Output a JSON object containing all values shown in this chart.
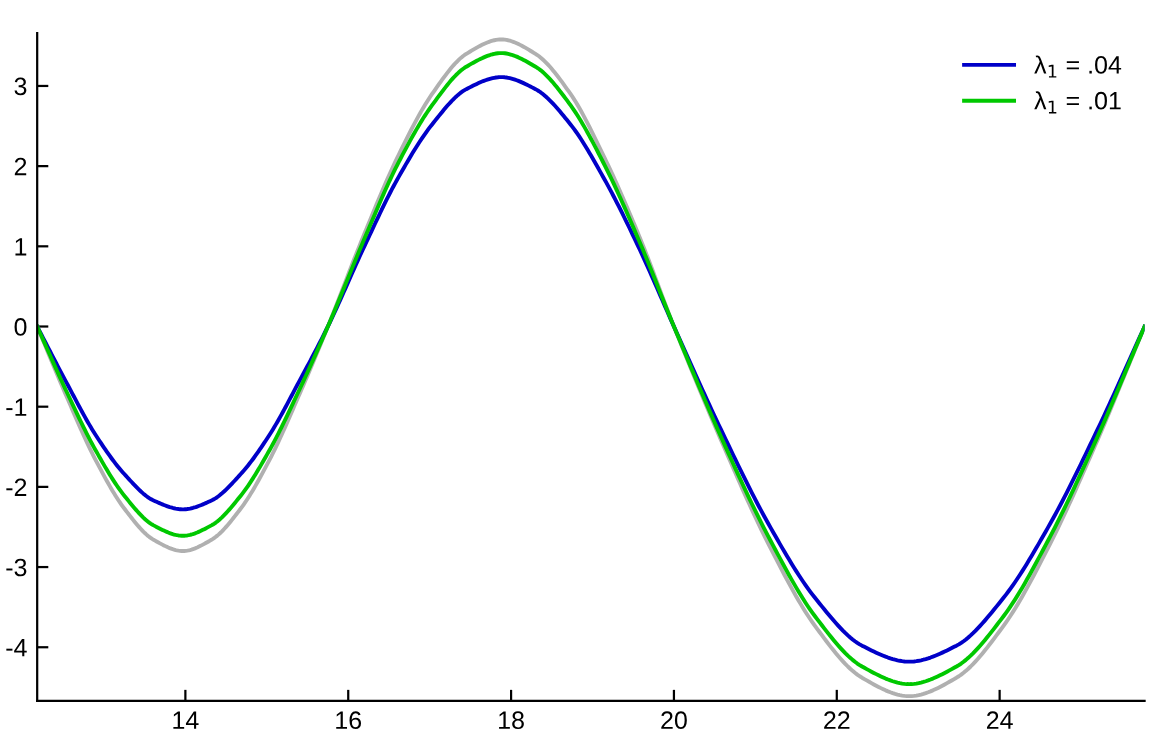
{
  "chart_data": {
    "type": "line",
    "x": [
      12.18,
      12.54,
      12.89,
      13.25,
      13.61,
      13.97,
      14.32,
      14.68,
      15.04,
      15.39,
      15.75,
      16.18,
      16.6,
      17.03,
      17.45,
      17.88,
      18.3,
      18.73,
      19.15,
      19.58,
      20,
      20.58,
      21.16,
      21.73,
      22.31,
      22.89,
      23.47,
      24.05,
      24.62,
      25.2,
      25.78
    ],
    "series": [
      {
        "color": "#b0b0b0",
        "values": [
          0,
          -0.87,
          -1.65,
          -2.27,
          -2.66,
          -2.8,
          -2.66,
          -2.27,
          -1.65,
          -0.87,
          0,
          1.11,
          2.1,
          2.9,
          3.4,
          3.58,
          3.4,
          2.9,
          2.1,
          1.11,
          0,
          -1.42,
          -2.71,
          -3.73,
          -4.38,
          -4.61,
          -4.38,
          -3.73,
          -2.71,
          -1.42,
          0
        ]
      },
      {
        "name": "λ$_{1}$ = .04",
        "color": "#0000c8",
        "values": [
          0,
          -0.7,
          -1.34,
          -1.84,
          -2.17,
          -2.28,
          -2.17,
          -1.84,
          -1.34,
          -0.7,
          0,
          0.96,
          1.83,
          2.52,
          2.96,
          3.11,
          2.96,
          2.52,
          1.83,
          0.96,
          0,
          -1.29,
          -2.46,
          -3.38,
          -3.98,
          -4.18,
          -3.98,
          -3.38,
          -2.46,
          -1.29,
          0
        ]
      },
      {
        "name": "λ$_{1}$ = .01",
        "color": "#00c800",
        "values": [
          0,
          -0.81,
          -1.53,
          -2.11,
          -2.48,
          -2.61,
          -2.48,
          -2.11,
          -1.53,
          -0.81,
          0,
          1.05,
          2.01,
          2.76,
          3.24,
          3.41,
          3.24,
          2.76,
          2.01,
          1.05,
          0,
          -1.38,
          -2.62,
          -3.61,
          -4.24,
          -4.46,
          -4.24,
          -3.61,
          -2.62,
          -1.38,
          0
        ]
      }
    ],
    "xlim": [
      12.18,
      25.78
    ],
    "ylim": [
      -4.67,
      3.66
    ],
    "xticks": [
      14,
      16,
      18,
      20,
      22,
      24
    ],
    "yticks": [
      -4,
      -3,
      -2,
      -1,
      0,
      1,
      2,
      3
    ],
    "legend": "top right",
    "grid": false,
    "marker": "none",
    "line_style": "solid"
  }
}
